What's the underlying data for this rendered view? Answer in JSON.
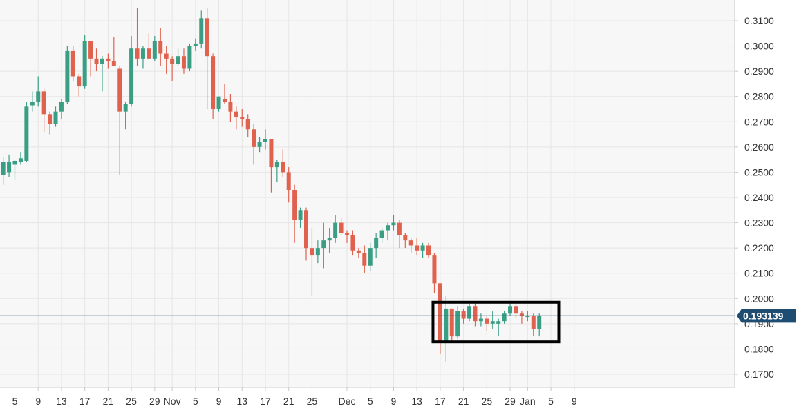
{
  "chart_data": {
    "type": "candlestick",
    "title": "",
    "xlabel": "",
    "ylabel": "",
    "ylim": [
      0.1655,
      0.3155
    ],
    "y_ticks": [
      "0.1700",
      "0.1800",
      "0.1900",
      "0.2000",
      "0.2100",
      "0.2200",
      "0.2300",
      "0.2400",
      "0.2500",
      "0.2600",
      "0.2700",
      "0.2800",
      "0.2900",
      "0.3000",
      "0.3100"
    ],
    "x_ticks": [
      "5",
      "9",
      "13",
      "17",
      "21",
      "25",
      "29",
      "Nov",
      "5",
      "9",
      "13",
      "17",
      "21",
      "25",
      "Dec",
      "5",
      "9",
      "13",
      "17",
      "21",
      "25",
      "29",
      "Jan",
      "5",
      "9"
    ],
    "x_tick_dates": [
      "Oct 5",
      "Oct 9",
      "Oct 13",
      "Oct 17",
      "Oct 21",
      "Oct 25",
      "Oct 29",
      "Nov 1",
      "Nov 5",
      "Nov 9",
      "Nov 13",
      "Nov 17",
      "Nov 21",
      "Nov 25",
      "Dec 1",
      "Dec 5",
      "Dec 9",
      "Dec 13",
      "Dec 17",
      "Dec 21",
      "Dec 25",
      "Dec 29",
      "Jan 1",
      "Jan 5",
      "Jan 9"
    ],
    "grid": true,
    "up_color": "#3a9e84",
    "down_color": "#e0624e",
    "current_price": 0.193139,
    "current_price_label": "0.193139",
    "highlight_box": {
      "from": "Dec 16",
      "to": "Jan 6",
      "y_range": [
        0.1828,
        0.1985
      ]
    },
    "candles": [
      {
        "date": "Oct 3",
        "open": 0.249,
        "high": 0.256,
        "low": 0.245,
        "close": 0.254
      },
      {
        "date": "Oct 4",
        "open": 0.25,
        "high": 0.257,
        "low": 0.248,
        "close": 0.254
      },
      {
        "date": "Oct 5",
        "open": 0.253,
        "high": 0.255,
        "low": 0.247,
        "close": 0.2545
      },
      {
        "date": "Oct 6",
        "open": 0.254,
        "high": 0.258,
        "low": 0.253,
        "close": 0.2555
      },
      {
        "date": "Oct 7",
        "open": 0.2545,
        "high": 0.278,
        "low": 0.254,
        "close": 0.276
      },
      {
        "date": "Oct 8",
        "open": 0.2765,
        "high": 0.282,
        "low": 0.274,
        "close": 0.278
      },
      {
        "date": "Oct 9",
        "open": 0.278,
        "high": 0.288,
        "low": 0.276,
        "close": 0.282
      },
      {
        "date": "Oct 10",
        "open": 0.282,
        "high": 0.283,
        "low": 0.266,
        "close": 0.273
      },
      {
        "date": "Oct 11",
        "open": 0.273,
        "high": 0.274,
        "low": 0.265,
        "close": 0.269
      },
      {
        "date": "Oct 12",
        "open": 0.269,
        "high": 0.276,
        "low": 0.268,
        "close": 0.274
      },
      {
        "date": "Oct 13",
        "open": 0.274,
        "high": 0.279,
        "low": 0.271,
        "close": 0.278
      },
      {
        "date": "Oct 14",
        "open": 0.278,
        "high": 0.3,
        "low": 0.277,
        "close": 0.298
      },
      {
        "date": "Oct 15",
        "open": 0.298,
        "high": 0.3,
        "low": 0.286,
        "close": 0.288
      },
      {
        "date": "Oct 16",
        "open": 0.288,
        "high": 0.289,
        "low": 0.28,
        "close": 0.284
      },
      {
        "date": "Oct 17",
        "open": 0.284,
        "high": 0.3045,
        "low": 0.283,
        "close": 0.302
      },
      {
        "date": "Oct 18",
        "open": 0.302,
        "high": 0.302,
        "low": 0.288,
        "close": 0.295
      },
      {
        "date": "Oct 19",
        "open": 0.295,
        "high": 0.299,
        "low": 0.29,
        "close": 0.293
      },
      {
        "date": "Oct 20",
        "open": 0.293,
        "high": 0.296,
        "low": 0.282,
        "close": 0.295
      },
      {
        "date": "Oct 21",
        "open": 0.295,
        "high": 0.297,
        "low": 0.291,
        "close": 0.294
      },
      {
        "date": "Oct 22",
        "open": 0.294,
        "high": 0.3035,
        "low": 0.292,
        "close": 0.292
      },
      {
        "date": "Oct 23",
        "open": 0.291,
        "high": 0.292,
        "low": 0.249,
        "close": 0.274
      },
      {
        "date": "Oct 24",
        "open": 0.274,
        "high": 0.278,
        "low": 0.267,
        "close": 0.277
      },
      {
        "date": "Oct 25",
        "open": 0.277,
        "high": 0.304,
        "low": 0.276,
        "close": 0.299
      },
      {
        "date": "Oct 26",
        "open": 0.299,
        "high": 0.315,
        "low": 0.292,
        "close": 0.295
      },
      {
        "date": "Oct 27",
        "open": 0.295,
        "high": 0.3,
        "low": 0.291,
        "close": 0.299
      },
      {
        "date": "Oct 28",
        "open": 0.299,
        "high": 0.305,
        "low": 0.295,
        "close": 0.295
      },
      {
        "date": "Oct 29",
        "open": 0.295,
        "high": 0.304,
        "low": 0.294,
        "close": 0.302
      },
      {
        "date": "Oct 30",
        "open": 0.302,
        "high": 0.307,
        "low": 0.292,
        "close": 0.297
      },
      {
        "date": "Oct 31",
        "open": 0.297,
        "high": 0.3,
        "low": 0.289,
        "close": 0.295
      },
      {
        "date": "Nov 1",
        "open": 0.295,
        "high": 0.296,
        "low": 0.286,
        "close": 0.293
      },
      {
        "date": "Nov 2",
        "open": 0.293,
        "high": 0.299,
        "low": 0.292,
        "close": 0.296
      },
      {
        "date": "Nov 3",
        "open": 0.296,
        "high": 0.299,
        "low": 0.289,
        "close": 0.291
      },
      {
        "date": "Nov 4",
        "open": 0.291,
        "high": 0.301,
        "low": 0.29,
        "close": 0.3
      },
      {
        "date": "Nov 5",
        "open": 0.3,
        "high": 0.303,
        "low": 0.298,
        "close": 0.301
      },
      {
        "date": "Nov 6",
        "open": 0.301,
        "high": 0.314,
        "low": 0.299,
        "close": 0.311
      },
      {
        "date": "Nov 7",
        "open": 0.311,
        "high": 0.315,
        "low": 0.275,
        "close": 0.296
      },
      {
        "date": "Nov 8",
        "open": 0.296,
        "high": 0.297,
        "low": 0.271,
        "close": 0.275
      },
      {
        "date": "Nov 9",
        "open": 0.275,
        "high": 0.28,
        "low": 0.274,
        "close": 0.28
      },
      {
        "date": "Nov 10",
        "open": 0.279,
        "high": 0.285,
        "low": 0.277,
        "close": 0.278
      },
      {
        "date": "Nov 11",
        "open": 0.278,
        "high": 0.281,
        "low": 0.27,
        "close": 0.274
      },
      {
        "date": "Nov 12",
        "open": 0.274,
        "high": 0.276,
        "low": 0.267,
        "close": 0.272
      },
      {
        "date": "Nov 13",
        "open": 0.272,
        "high": 0.275,
        "low": 0.268,
        "close": 0.271
      },
      {
        "date": "Nov 14",
        "open": 0.271,
        "high": 0.273,
        "low": 0.264,
        "close": 0.267
      },
      {
        "date": "Nov 15",
        "open": 0.267,
        "high": 0.269,
        "low": 0.253,
        "close": 0.26
      },
      {
        "date": "Nov 16",
        "open": 0.26,
        "high": 0.264,
        "low": 0.258,
        "close": 0.262
      },
      {
        "date": "Nov 17",
        "open": 0.262,
        "high": 0.267,
        "low": 0.259,
        "close": 0.263
      },
      {
        "date": "Nov 18",
        "open": 0.263,
        "high": 0.263,
        "low": 0.242,
        "close": 0.252
      },
      {
        "date": "Nov 19",
        "open": 0.252,
        "high": 0.255,
        "low": 0.246,
        "close": 0.254
      },
      {
        "date": "Nov 20",
        "open": 0.254,
        "high": 0.259,
        "low": 0.248,
        "close": 0.25
      },
      {
        "date": "Nov 21",
        "open": 0.25,
        "high": 0.252,
        "low": 0.238,
        "close": 0.243
      },
      {
        "date": "Nov 22",
        "open": 0.243,
        "high": 0.245,
        "low": 0.222,
        "close": 0.231
      },
      {
        "date": "Nov 23",
        "open": 0.231,
        "high": 0.236,
        "low": 0.228,
        "close": 0.235
      },
      {
        "date": "Nov 24",
        "open": 0.235,
        "high": 0.236,
        "low": 0.215,
        "close": 0.22
      },
      {
        "date": "Nov 25",
        "open": 0.22,
        "high": 0.228,
        "low": 0.201,
        "close": 0.217
      },
      {
        "date": "Nov 26",
        "open": 0.217,
        "high": 0.223,
        "low": 0.214,
        "close": 0.22
      },
      {
        "date": "Nov 27",
        "open": 0.22,
        "high": 0.23,
        "low": 0.212,
        "close": 0.223
      },
      {
        "date": "Nov 28",
        "open": 0.223,
        "high": 0.228,
        "low": 0.218,
        "close": 0.224
      },
      {
        "date": "Nov 29",
        "open": 0.224,
        "high": 0.233,
        "low": 0.222,
        "close": 0.23
      },
      {
        "date": "Nov 30",
        "open": 0.23,
        "high": 0.232,
        "low": 0.225,
        "close": 0.226
      },
      {
        "date": "Dec 1",
        "open": 0.226,
        "high": 0.227,
        "low": 0.222,
        "close": 0.225
      },
      {
        "date": "Dec 2",
        "open": 0.225,
        "high": 0.227,
        "low": 0.217,
        "close": 0.219
      },
      {
        "date": "Dec 3",
        "open": 0.219,
        "high": 0.22,
        "low": 0.216,
        "close": 0.218
      },
      {
        "date": "Dec 4",
        "open": 0.218,
        "high": 0.221,
        "low": 0.21,
        "close": 0.213
      },
      {
        "date": "Dec 5",
        "open": 0.213,
        "high": 0.222,
        "low": 0.211,
        "close": 0.22
      },
      {
        "date": "Dec 6",
        "open": 0.22,
        "high": 0.226,
        "low": 0.216,
        "close": 0.224
      },
      {
        "date": "Dec 7",
        "open": 0.224,
        "high": 0.228,
        "low": 0.222,
        "close": 0.227
      },
      {
        "date": "Dec 8",
        "open": 0.227,
        "high": 0.23,
        "low": 0.223,
        "close": 0.229
      },
      {
        "date": "Dec 9",
        "open": 0.229,
        "high": 0.233,
        "low": 0.227,
        "close": 0.23
      },
      {
        "date": "Dec 10",
        "open": 0.23,
        "high": 0.231,
        "low": 0.22,
        "close": 0.225
      },
      {
        "date": "Dec 11",
        "open": 0.225,
        "high": 0.226,
        "low": 0.22,
        "close": 0.223
      },
      {
        "date": "Dec 12",
        "open": 0.223,
        "high": 0.224,
        "low": 0.218,
        "close": 0.221
      },
      {
        "date": "Dec 13",
        "open": 0.221,
        "high": 0.224,
        "low": 0.217,
        "close": 0.219
      },
      {
        "date": "Dec 14",
        "open": 0.219,
        "high": 0.222,
        "low": 0.216,
        "close": 0.221
      },
      {
        "date": "Dec 15",
        "open": 0.221,
        "high": 0.222,
        "low": 0.216,
        "close": 0.217
      },
      {
        "date": "Dec 16",
        "open": 0.217,
        "high": 0.218,
        "low": 0.202,
        "close": 0.206
      },
      {
        "date": "Dec 17",
        "open": 0.206,
        "high": 0.206,
        "low": 0.178,
        "close": 0.183
      },
      {
        "date": "Dec 18",
        "open": 0.183,
        "high": 0.201,
        "low": 0.175,
        "close": 0.196
      },
      {
        "date": "Dec 19",
        "open": 0.196,
        "high": 0.196,
        "low": 0.183,
        "close": 0.185
      },
      {
        "date": "Dec 20",
        "open": 0.185,
        "high": 0.197,
        "low": 0.184,
        "close": 0.195
      },
      {
        "date": "Dec 21",
        "open": 0.195,
        "high": 0.196,
        "low": 0.19,
        "close": 0.192
      },
      {
        "date": "Dec 22",
        "open": 0.192,
        "high": 0.198,
        "low": 0.191,
        "close": 0.197
      },
      {
        "date": "Dec 23",
        "open": 0.197,
        "high": 0.198,
        "low": 0.189,
        "close": 0.191
      },
      {
        "date": "Dec 24",
        "open": 0.191,
        "high": 0.194,
        "low": 0.189,
        "close": 0.192
      },
      {
        "date": "Dec 25",
        "open": 0.192,
        "high": 0.193,
        "low": 0.187,
        "close": 0.19
      },
      {
        "date": "Dec 26",
        "open": 0.19,
        "high": 0.195,
        "low": 0.188,
        "close": 0.191
      },
      {
        "date": "Dec 27",
        "open": 0.19,
        "high": 0.192,
        "low": 0.185,
        "close": 0.191
      },
      {
        "date": "Dec 28",
        "open": 0.191,
        "high": 0.195,
        "low": 0.19,
        "close": 0.194
      },
      {
        "date": "Dec 29",
        "open": 0.194,
        "high": 0.198,
        "low": 0.193,
        "close": 0.197
      },
      {
        "date": "Dec 30",
        "open": 0.197,
        "high": 0.198,
        "low": 0.192,
        "close": 0.194
      },
      {
        "date": "Dec 31",
        "open": 0.194,
        "high": 0.195,
        "low": 0.19,
        "close": 0.193
      },
      {
        "date": "Jan 1",
        "open": 0.193,
        "high": 0.195,
        "low": 0.191,
        "close": 0.193
      },
      {
        "date": "Jan 2",
        "open": 0.193,
        "high": 0.194,
        "low": 0.185,
        "close": 0.188
      },
      {
        "date": "Jan 3",
        "open": 0.188,
        "high": 0.194,
        "low": 0.185,
        "close": 0.1931
      }
    ]
  }
}
